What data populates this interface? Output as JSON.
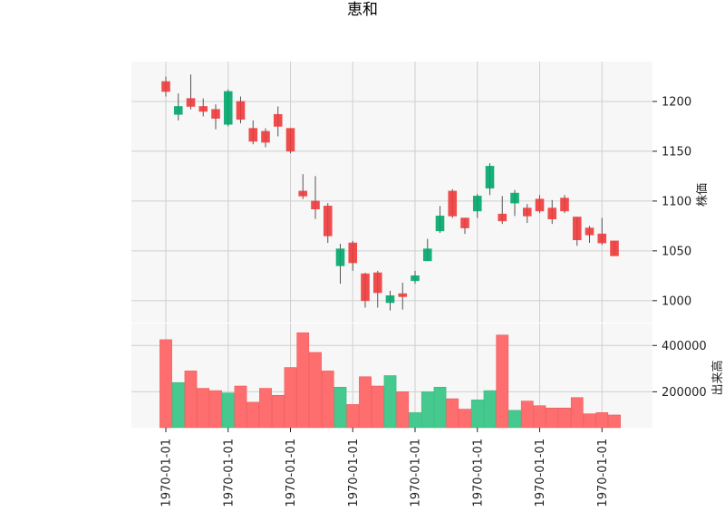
{
  "chart_data": {
    "type": "candlestick",
    "title": "恵和",
    "up_color": "#00a86b",
    "down_color": "#ef3b3b",
    "x_tick_labels": [
      "1970-01-01",
      "1970-01-01",
      "1970-01-01",
      "1970-01-01",
      "1970-01-01",
      "1970-01-01",
      "1970-01-01",
      "1970-01-01"
    ],
    "price_axis": {
      "label": "株価",
      "ylim": [
        978,
        1240
      ],
      "ticks": [
        1000,
        1050,
        1100,
        1150,
        1200
      ]
    },
    "volume_axis": {
      "label": "出来高",
      "ylim": [
        45000,
        495000
      ],
      "ticks": [
        "200000",
        "400000"
      ],
      "tick_values": [
        200000,
        400000
      ]
    },
    "grid": true,
    "candles": [
      {
        "open": 1210,
        "close": 1220,
        "high": 1225,
        "low": 1205,
        "volume": 425000
      },
      {
        "open": 1195,
        "close": 1187,
        "high": 1208,
        "low": 1181,
        "volume": 240000
      },
      {
        "open": 1195,
        "close": 1203,
        "high": 1227,
        "low": 1192,
        "volume": 290000
      },
      {
        "open": 1190,
        "close": 1195,
        "high": 1203,
        "low": 1185,
        "volume": 215000
      },
      {
        "open": 1183,
        "close": 1192,
        "high": 1197,
        "low": 1172,
        "volume": 205000
      },
      {
        "open": 1177,
        "close": 1210,
        "high": 1212,
        "low": 1175,
        "volume": 195000
      },
      {
        "open": 1182,
        "close": 1200,
        "high": 1205,
        "low": 1178,
        "volume": 225000
      },
      {
        "open": 1160,
        "close": 1173,
        "high": 1181,
        "low": 1157,
        "volume": 155000
      },
      {
        "open": 1159,
        "close": 1170,
        "high": 1173,
        "low": 1154,
        "volume": 215000
      },
      {
        "open": 1175,
        "close": 1187,
        "high": 1195,
        "low": 1165,
        "volume": 185000
      },
      {
        "open": 1150,
        "close": 1173,
        "high": 1173,
        "low": 1148,
        "volume": 305000
      },
      {
        "open": 1105,
        "close": 1110,
        "high": 1127,
        "low": 1102,
        "volume": 455000
      },
      {
        "open": 1092,
        "close": 1100,
        "high": 1125,
        "low": 1082,
        "volume": 370000
      },
      {
        "open": 1065,
        "close": 1095,
        "high": 1098,
        "low": 1058,
        "volume": 290000
      },
      {
        "open": 1035,
        "close": 1052,
        "high": 1057,
        "low": 1017,
        "volume": 220000
      },
      {
        "open": 1038,
        "close": 1058,
        "high": 1060,
        "low": 1030,
        "volume": 145000
      },
      {
        "open": 1000,
        "close": 1027,
        "high": 1028,
        "low": 993,
        "volume": 265000
      },
      {
        "open": 1008,
        "close": 1028,
        "high": 1030,
        "low": 993,
        "volume": 225000
      },
      {
        "open": 998,
        "close": 1005,
        "high": 1010,
        "low": 990,
        "volume": 270000
      },
      {
        "open": 1004,
        "close": 1007,
        "high": 1018,
        "low": 991,
        "volume": 200000
      },
      {
        "open": 1020,
        "close": 1025,
        "high": 1030,
        "low": 1017,
        "volume": 110000
      },
      {
        "open": 1040,
        "close": 1052,
        "high": 1062,
        "low": 1040,
        "volume": 200000
      },
      {
        "open": 1070,
        "close": 1085,
        "high": 1095,
        "low": 1068,
        "volume": 220000
      },
      {
        "open": 1085,
        "close": 1110,
        "high": 1112,
        "low": 1083,
        "volume": 170000
      },
      {
        "open": 1073,
        "close": 1083,
        "high": 1083,
        "low": 1067,
        "volume": 125000
      },
      {
        "open": 1090,
        "close": 1105,
        "high": 1107,
        "low": 1083,
        "volume": 165000
      },
      {
        "open": 1113,
        "close": 1135,
        "high": 1138,
        "low": 1106,
        "volume": 205000
      },
      {
        "open": 1080,
        "close": 1087,
        "high": 1105,
        "low": 1077,
        "volume": 445000
      },
      {
        "open": 1098,
        "close": 1108,
        "high": 1111,
        "low": 1085,
        "volume": 120000
      },
      {
        "open": 1085,
        "close": 1093,
        "high": 1097,
        "low": 1078,
        "volume": 160000
      },
      {
        "open": 1090,
        "close": 1102,
        "high": 1106,
        "low": 1088,
        "volume": 140000
      },
      {
        "open": 1082,
        "close": 1093,
        "high": 1101,
        "low": 1077,
        "volume": 130000
      },
      {
        "open": 1090,
        "close": 1103,
        "high": 1106,
        "low": 1088,
        "volume": 130000
      },
      {
        "open": 1061,
        "close": 1084,
        "high": 1084,
        "low": 1055,
        "volume": 175000
      },
      {
        "open": 1066,
        "close": 1073,
        "high": 1075,
        "low": 1058,
        "volume": 105000
      },
      {
        "open": 1058,
        "close": 1067,
        "high": 1083,
        "low": 1056,
        "volume": 110000
      },
      {
        "open": 1045,
        "close": 1060,
        "high": 1060,
        "low": 1045,
        "volume": 100000
      }
    ]
  }
}
